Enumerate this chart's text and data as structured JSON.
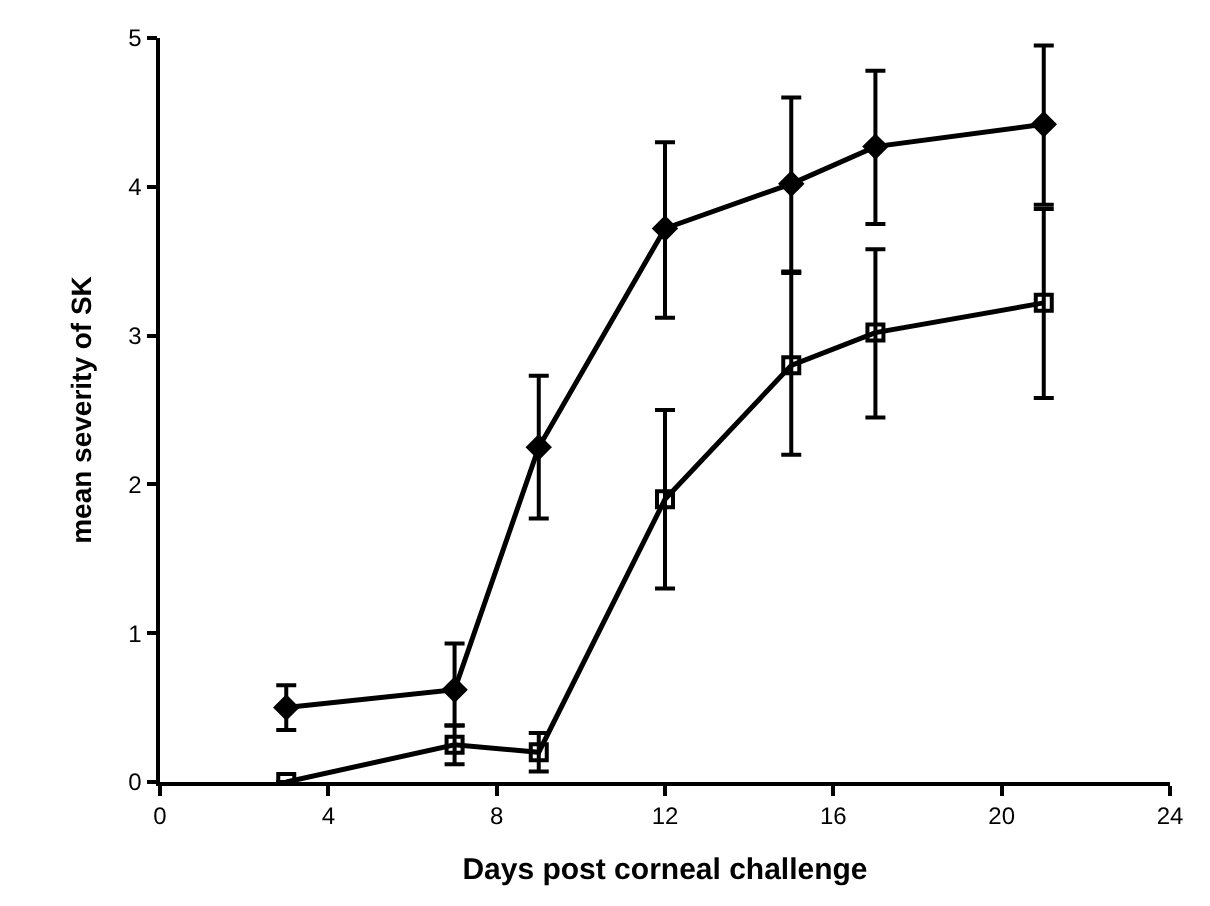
{
  "chart_data": {
    "type": "line",
    "xlabel": "Days post corneal challenge",
    "ylabel": "mean severity of SK",
    "x": [
      3,
      7,
      9,
      12,
      15,
      17,
      21
    ],
    "series": [
      {
        "color": "#000000",
        "marker": "diamond",
        "values": [
          0.5,
          0.62,
          2.25,
          3.72,
          4.02,
          4.27,
          4.42
        ],
        "errors": [
          [
            0.35,
            0.65
          ],
          [
            0.38,
            0.93
          ],
          [
            1.77,
            2.73
          ],
          [
            3.12,
            4.3
          ],
          [
            3.43,
            4.6
          ],
          [
            3.75,
            4.78
          ],
          [
            3.88,
            4.95
          ]
        ]
      },
      {
        "color": "#000000",
        "marker": "square",
        "values": [
          0,
          0.25,
          0.2,
          1.9,
          2.8,
          3.02,
          3.22
        ],
        "errors": [
          null,
          [
            0.12,
            0.38
          ],
          [
            0.07,
            0.33
          ],
          [
            1.3,
            2.5
          ],
          [
            2.2,
            3.42
          ],
          [
            2.45,
            3.58
          ],
          [
            2.58,
            3.85
          ]
        ]
      }
    ],
    "xlim": [
      0,
      24
    ],
    "xticks": [
      0,
      4,
      8,
      12,
      16,
      20,
      24
    ],
    "ylim": [
      0,
      5
    ],
    "yticks": [
      0,
      1,
      2,
      3,
      4,
      5
    ],
    "line_style": "solid"
  }
}
